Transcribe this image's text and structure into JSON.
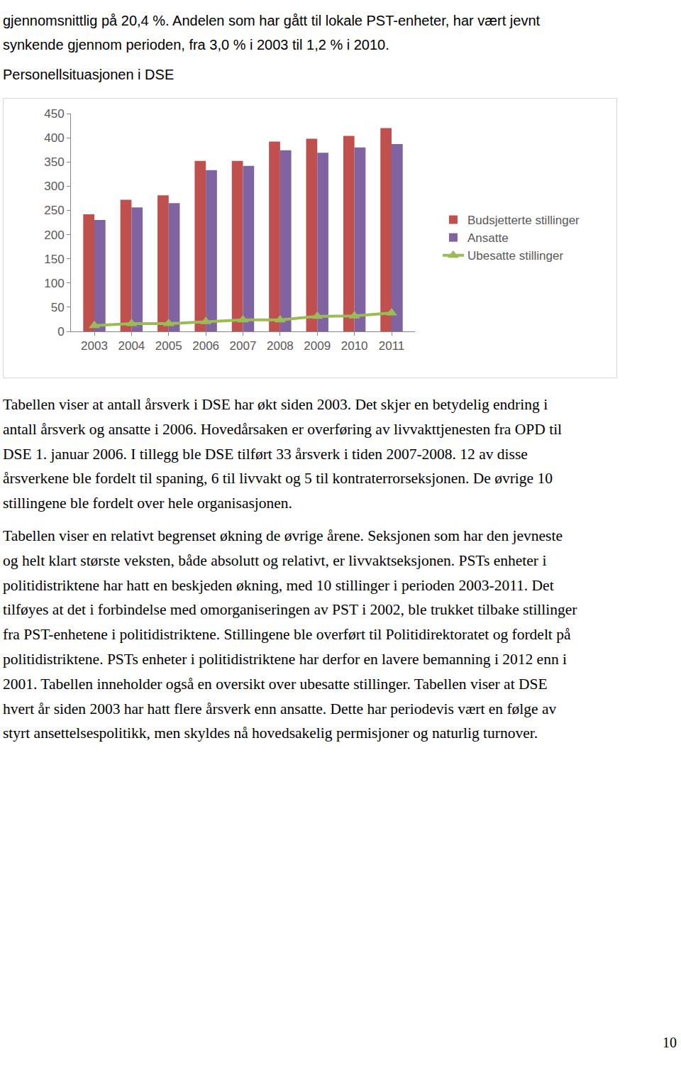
{
  "intro_lines": [
    "gjennomsnittlig på 20,4 %. Andelen som har gått til lokale PST-enheter, har vært jevnt",
    "synkende gjennom perioden, fra 3,0 % i 2003 til 1,2 % i 2010."
  ],
  "chart_data": {
    "type": "bar",
    "title": "Personellsituasjonen i DSE",
    "categories": [
      "2003",
      "2004",
      "2005",
      "2006",
      "2007",
      "2008",
      "2009",
      "2010",
      "2011"
    ],
    "series": [
      {
        "name": "Budsjetterte stillinger",
        "type": "bar",
        "color": "#c0504d",
        "values": [
          242,
          272,
          281,
          352,
          352,
          392,
          398,
          404,
          420
        ]
      },
      {
        "name": "Ansatte",
        "type": "bar",
        "color": "#8064a2",
        "values": [
          230,
          256,
          265,
          333,
          342,
          374,
          369,
          380,
          387
        ]
      },
      {
        "name": "Ubesatte stillinger",
        "type": "line",
        "color": "#9bbb59",
        "marker": "triangle-up",
        "values": [
          12,
          16,
          16,
          20,
          24,
          24,
          31,
          32,
          38
        ]
      }
    ],
    "ylim": [
      0,
      450
    ],
    "yticks": [
      0,
      50,
      100,
      150,
      200,
      250,
      300,
      350,
      400,
      450
    ],
    "grid": false,
    "legend": "right"
  },
  "paragraphs": [
    [
      "Tabellen viser at antall årsverk i DSE har økt siden 2003. Det skjer en betydelig endring i",
      "antall årsverk og ansatte i 2006. Hovedårsaken er overføring av livvakttjenesten fra OPD til",
      "DSE  1. januar 2006. I tillegg ble DSE tilført 33 årsverk i tiden 2007-2008. 12 av disse",
      "årsverkene ble fordelt til spaning, 6 til livvakt og 5 til kontraterrorseksjonen. De øvrige 10",
      "stillingene ble fordelt over hele organisasjonen."
    ],
    [
      "Tabellen viser en relativt begrenset økning de øvrige årene. Seksjonen som har den jevneste",
      "og helt klart største veksten, både absolutt og relativt, er livvaktseksjonen. PSTs enheter i",
      "politidistriktene har hatt en beskjeden økning, med 10 stillinger i perioden 2003-2011. Det",
      "tilføyes at det i forbindelse med omorganiseringen av PST i 2002, ble trukket tilbake stillinger",
      "fra PST-enhetene i politidistriktene. Stillingene ble overført til Politidirektoratet og fordelt på",
      "politidistriktene. PSTs enheter i politidistriktene har derfor en lavere bemanning i 2012 enn i",
      "2001. Tabellen inneholder også en oversikt over ubesatte stillinger. Tabellen viser at DSE",
      "hvert år siden 2003 har hatt flere årsverk enn ansatte. Dette har periodevis vært en følge av",
      "styrt ansettelsespolitikk, men skyldes nå hovedsakelig permisjoner og naturlig turnover."
    ]
  ],
  "page_number": "10"
}
